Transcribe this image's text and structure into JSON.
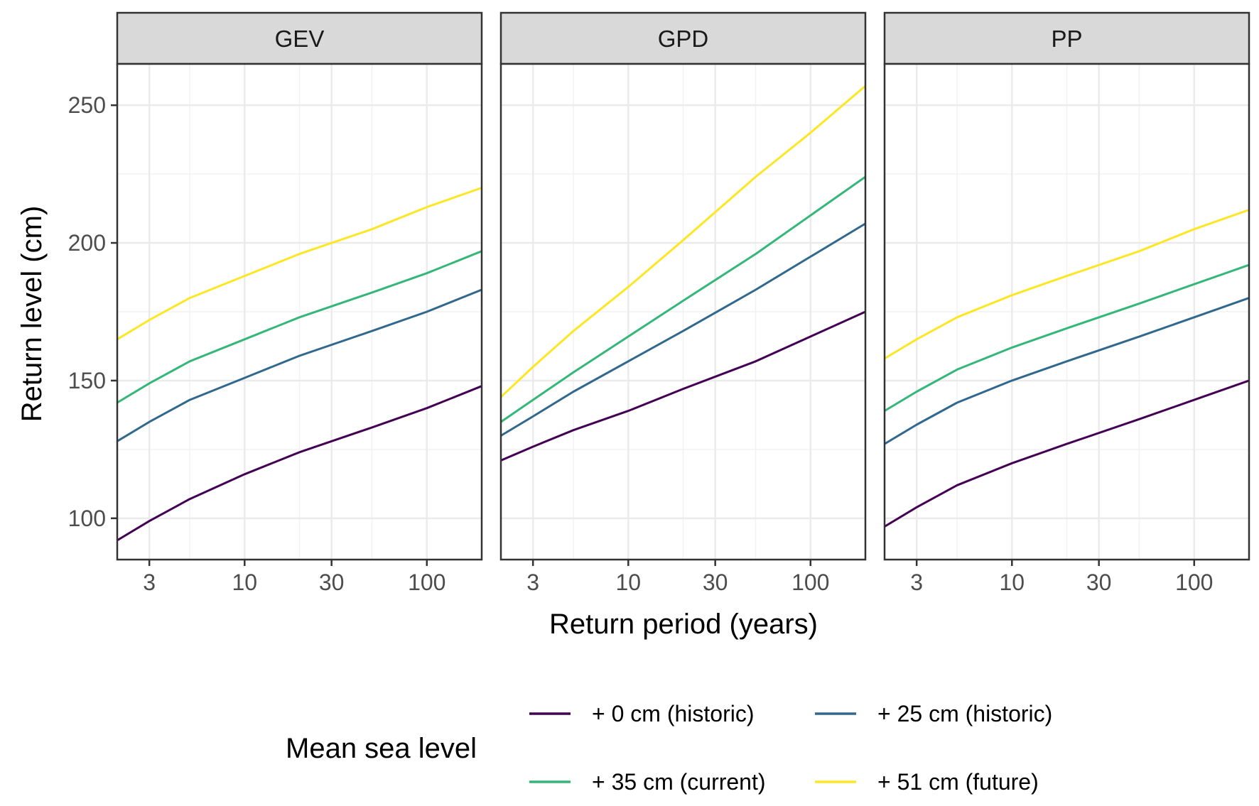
{
  "chart_data": {
    "type": "line",
    "xscale": "log10",
    "xlabel": "Return period (years)",
    "ylabel": "Return level (cm)",
    "xlim": [
      2,
      200
    ],
    "ylim": [
      85,
      265
    ],
    "x_ticks": [
      3,
      10,
      30,
      100
    ],
    "x_tick_labels": [
      "3",
      "10",
      "30",
      "100"
    ],
    "y_ticks": [
      100,
      150,
      200,
      250
    ],
    "y_tick_labels": [
      "100",
      "150",
      "200",
      "250"
    ],
    "x": [
      2,
      3,
      5,
      10,
      20,
      50,
      100,
      200
    ],
    "grid": true,
    "legend": {
      "title": "Mean sea level",
      "placement": "bottom",
      "entries": [
        {
          "label": "+ 0 cm (historic)",
          "color": "#440154"
        },
        {
          "label": "+ 25 cm (historic)",
          "color": "#31688e"
        },
        {
          "label": "+ 35 cm (current)",
          "color": "#35b779"
        },
        {
          "label": "+ 51 cm (future)",
          "color": "#fde725"
        }
      ]
    },
    "panels": [
      {
        "title": "GEV",
        "series": [
          {
            "name": "+ 0 cm (historic)",
            "values": [
              92,
              99,
              107,
              116,
              124,
              133,
              140,
              148
            ]
          },
          {
            "name": "+ 25 cm (historic)",
            "values": [
              128,
              135,
              143,
              151,
              159,
              168,
              175,
              183
            ]
          },
          {
            "name": "+ 35 cm (current)",
            "values": [
              142,
              149,
              157,
              165,
              173,
              182,
              189,
              197
            ]
          },
          {
            "name": "+ 51 cm (future)",
            "values": [
              165,
              172,
              180,
              188,
              196,
              205,
              213,
              220
            ]
          }
        ]
      },
      {
        "title": "GPD",
        "series": [
          {
            "name": "+ 0 cm (historic)",
            "values": [
              121,
              126,
              132,
              139,
              147,
              157,
              166,
              175
            ]
          },
          {
            "name": "+ 25 cm (historic)",
            "values": [
              130,
              137,
              146,
              157,
              168,
              183,
              195,
              207
            ]
          },
          {
            "name": "+ 35 cm (current)",
            "values": [
              135,
              143,
              153,
              166,
              179,
              196,
              210,
              224
            ]
          },
          {
            "name": "+ 51 cm (future)",
            "values": [
              144,
              155,
              168,
              184,
              201,
              224,
              240,
              257
            ]
          }
        ]
      },
      {
        "title": "PP",
        "series": [
          {
            "name": "+ 0 cm (historic)",
            "values": [
              97,
              104,
              112,
              120,
              127,
              136,
              143,
              150
            ]
          },
          {
            "name": "+ 25 cm (historic)",
            "values": [
              127,
              134,
              142,
              150,
              157,
              166,
              173,
              180
            ]
          },
          {
            "name": "+ 35 cm (current)",
            "values": [
              139,
              146,
              154,
              162,
              169,
              178,
              185,
              192
            ]
          },
          {
            "name": "+ 51 cm (future)",
            "values": [
              158,
              165,
              173,
              181,
              188,
              197,
              205,
              212
            ]
          }
        ]
      }
    ]
  }
}
